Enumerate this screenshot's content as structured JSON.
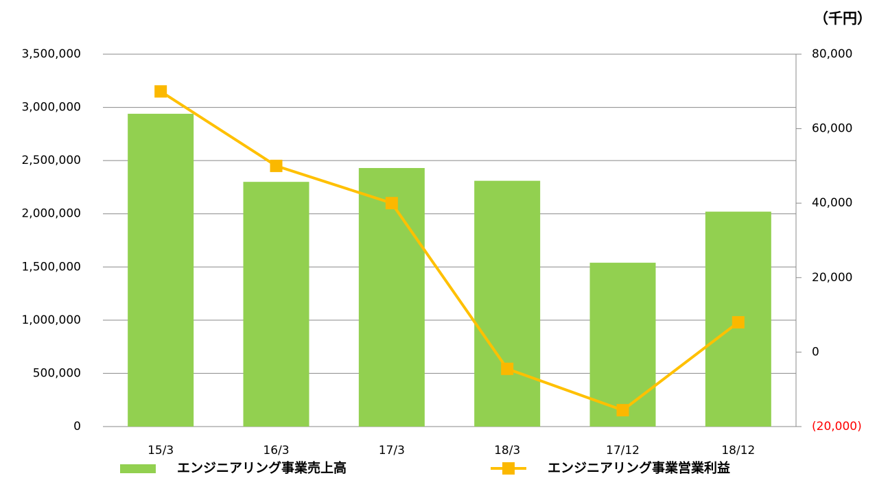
{
  "chart_data": {
    "type": "bar_line",
    "y2_label": "（千円）",
    "categories": [
      "15/3",
      "16/3",
      "17/3",
      "18/3",
      "17/12",
      "18/12"
    ],
    "series": [
      {
        "name": "エンジニアリング事業売上高",
        "type": "bar",
        "color": "#92d050",
        "values": [
          2940000,
          2300000,
          2430000,
          2310000,
          1540000,
          2020000
        ]
      },
      {
        "name": "エンジニアリング事業営業利益",
        "type": "line",
        "axis": "y2",
        "color": "#ffc000",
        "values": [
          70000,
          50000,
          40000,
          -4500,
          -15600,
          8000
        ]
      }
    ],
    "ylim": [
      0,
      3500000
    ],
    "yticks": [
      0,
      {
        "value": 500000,
        "label": "500,000"
      },
      {
        "value": 1000000,
        "label": "1,000,000"
      },
      {
        "value": 1500000,
        "label": "1,500,000"
      },
      {
        "value": 2000000,
        "label": "2,000,000"
      },
      {
        "value": 2500000,
        "label": "2,500,000"
      },
      {
        "value": 3000000,
        "label": "3,000,000"
      },
      {
        "value": 3500000,
        "label": "3,500,000"
      }
    ],
    "y2lim": [
      -20000,
      80000
    ],
    "y2ticks": [
      {
        "value": -20000,
        "label": "(20,000)"
      },
      0,
      {
        "value": 20000,
        "label": "20,000"
      },
      {
        "value": 40000,
        "label": "40,000"
      },
      {
        "value": 60000,
        "label": "60,000"
      },
      {
        "value": 80000,
        "label": "80,000"
      }
    ],
    "y2_negative_color": "#ff0000",
    "grid": true
  }
}
